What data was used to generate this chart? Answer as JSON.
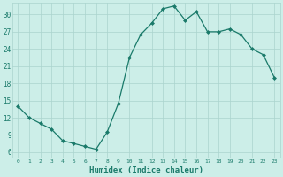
{
  "x": [
    0,
    1,
    2,
    3,
    4,
    5,
    6,
    7,
    8,
    9,
    10,
    11,
    12,
    13,
    14,
    15,
    16,
    17,
    18,
    19,
    20,
    21,
    22,
    23
  ],
  "y": [
    14,
    12,
    11,
    10,
    8,
    7.5,
    7,
    6.5,
    9.5,
    14.5,
    22.5,
    26.5,
    28.5,
    31,
    31.5,
    29,
    30.5,
    27,
    27,
    27.5,
    26.5,
    24,
    23,
    19
  ],
  "line_color": "#1a7a6a",
  "bg_color": "#cceee8",
  "grid_color": "#aad4ce",
  "tick_label_color": "#1a7a6a",
  "xlabel": "Humidex (Indice chaleur)",
  "xlabel_color": "#1a7a6a",
  "yticks": [
    6,
    9,
    12,
    15,
    18,
    21,
    24,
    27,
    30
  ],
  "xtick_labels": [
    "0",
    "1",
    "2",
    "3",
    "4",
    "5",
    "6",
    "7",
    "8",
    "9",
    "10",
    "11",
    "12",
    "13",
    "14",
    "15",
    "16",
    "17",
    "18",
    "19",
    "20",
    "21",
    "22",
    "23"
  ],
  "ylim": [
    5.0,
    32.0
  ],
  "xlim": [
    -0.5,
    23.5
  ]
}
